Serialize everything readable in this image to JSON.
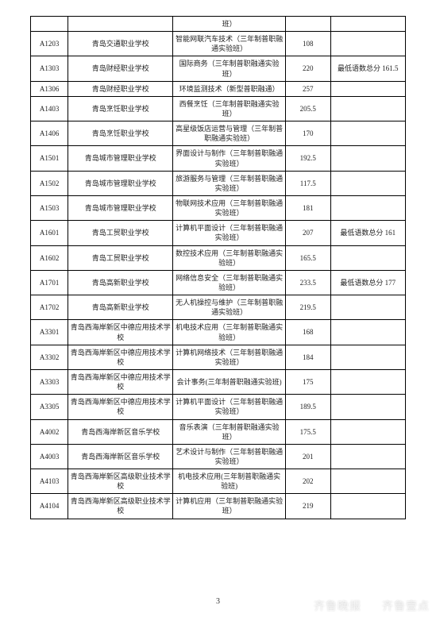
{
  "table": {
    "top_partial_row": [
      "",
      "",
      "班）",
      "",
      ""
    ],
    "rows": [
      {
        "code": "A1203",
        "school": "青岛交通职业学校",
        "major": "智能网联汽车技术（三年制普职融通实验班）",
        "score": "108",
        "note": ""
      },
      {
        "code": "A1303",
        "school": "青岛财经职业学校",
        "major": "国际商务（三年制普职融通实验班）",
        "score": "220",
        "note": "最低语数总分 161.5"
      },
      {
        "code": "A1306",
        "school": "青岛财经职业学校",
        "major": "环境监测技术（新型普职融通）",
        "score": "257",
        "note": ""
      },
      {
        "code": "A1403",
        "school": "青岛烹饪职业学校",
        "major": "西餐烹饪（三年制普职融通实验班）",
        "score": "205.5",
        "note": ""
      },
      {
        "code": "A1406",
        "school": "青岛烹饪职业学校",
        "major": "高星级饭店运营与管理（三年制普职融通实验班）",
        "score": "170",
        "note": ""
      },
      {
        "code": "A1501",
        "school": "青岛城市管理职业学校",
        "major": "界面设计与制作（三年制普职融通实验班）",
        "score": "192.5",
        "note": ""
      },
      {
        "code": "A1502",
        "school": "青岛城市管理职业学校",
        "major": "旅游服务与管理（三年制普职融通实验班）",
        "score": "117.5",
        "note": ""
      },
      {
        "code": "A1503",
        "school": "青岛城市管理职业学校",
        "major": "物联网技术应用（三年制普职融通实验班）",
        "score": "181",
        "note": ""
      },
      {
        "code": "A1601",
        "school": "青岛工贸职业学校",
        "major": "计算机平面设计（三年制普职融通实验班）",
        "score": "207",
        "note": "最低语数总分 161"
      },
      {
        "code": "A1602",
        "school": "青岛工贸职业学校",
        "major": "数控技术应用（三年制普职融通实验班）",
        "score": "165.5",
        "note": ""
      },
      {
        "code": "A1701",
        "school": "青岛高新职业学校",
        "major": "网络信息安全（三年制普职融通实验班）",
        "score": "233.5",
        "note": "最低语数总分 177"
      },
      {
        "code": "A1702",
        "school": "青岛高新职业学校",
        "major": "无人机操控与维护（三年制普职融通实验班）",
        "score": "219.5",
        "note": ""
      },
      {
        "code": "A3301",
        "school": "青岛西海岸新区中德应用技术学校",
        "major": "机电技术应用（三年制普职融通实验班）",
        "score": "168",
        "note": ""
      },
      {
        "code": "A3302",
        "school": "青岛西海岸新区中德应用技术学校",
        "major": "计算机网络技术（三年制普职融通实验班）",
        "score": "184",
        "note": ""
      },
      {
        "code": "A3303",
        "school": "青岛西海岸新区中德应用技术学校",
        "major": "会计事务(三年制普职融通实验班)",
        "score": "175",
        "note": ""
      },
      {
        "code": "A3305",
        "school": "青岛西海岸新区中德应用技术学校",
        "major": "计算机平面设计（三年制普职融通实验班）",
        "score": "189.5",
        "note": ""
      },
      {
        "code": "A4002",
        "school": "青岛西海岸新区音乐学校",
        "major": "音乐表演（三年制普职融通实验班）",
        "score": "175.5",
        "note": ""
      },
      {
        "code": "A4003",
        "school": "青岛西海岸新区音乐学校",
        "major": "艺术设计与制作（三年制普职融通实验班）",
        "score": "201",
        "note": ""
      },
      {
        "code": "A4103",
        "school": "青岛西海岸新区高级职业技术学校",
        "major": "机电技术应用(三年制普职融通实验班)",
        "score": "202",
        "note": ""
      },
      {
        "code": "A4104",
        "school": "青岛西海岸新区高级职业技术学校",
        "major": "计算机应用（三年制普职融通实验班）",
        "score": "219",
        "note": ""
      }
    ]
  },
  "page_number": "3",
  "watermark": {
    "left": "齐鲁晚报",
    "right": "齐鲁壹点"
  }
}
